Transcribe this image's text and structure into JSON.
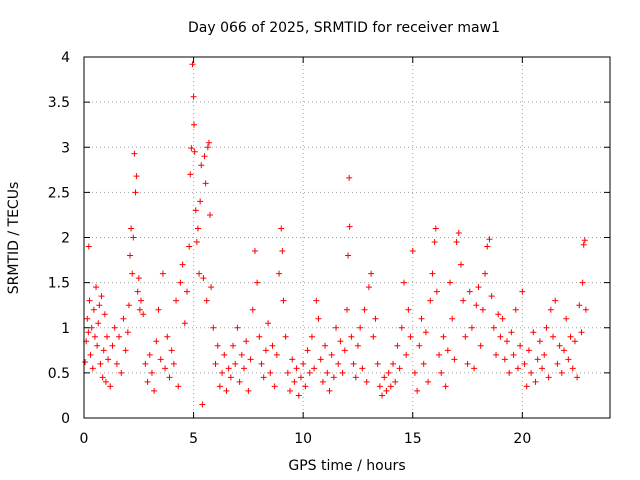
{
  "chart_data": {
    "type": "scatter",
    "title": "Day 066 of 2025, SRMTID for receiver maw1",
    "xlabel": "GPS time / hours",
    "ylabel": "SRMTID / TECUs",
    "xlim": [
      0,
      24
    ],
    "ylim": [
      0,
      4
    ],
    "xticks": [
      0,
      5,
      10,
      15,
      20
    ],
    "yticks": [
      0,
      0.5,
      1,
      1.5,
      2,
      2.5,
      3,
      3.5,
      4
    ],
    "xtick_labels": [
      "0",
      "5",
      "10",
      "15",
      "20"
    ],
    "ytick_labels": [
      "0",
      "0.5",
      "1",
      "1.5",
      "2",
      "2.5",
      "3",
      "3.5",
      "4"
    ],
    "grid": true,
    "marker": "+",
    "color": "#ff0000",
    "series": [
      {
        "name": "SRMTID",
        "points": [
          [
            0.05,
            0.62
          ],
          [
            0.1,
            0.85
          ],
          [
            0.15,
            1.1
          ],
          [
            0.2,
            0.95
          ],
          [
            0.22,
            1.9
          ],
          [
            0.25,
            1.3
          ],
          [
            0.3,
            0.7
          ],
          [
            0.35,
            1.0
          ],
          [
            0.4,
            0.55
          ],
          [
            0.45,
            1.2
          ],
          [
            0.5,
            0.9
          ],
          [
            0.55,
            1.45
          ],
          [
            0.6,
            0.8
          ],
          [
            0.65,
            1.05
          ],
          [
            0.7,
            1.25
          ],
          [
            0.75,
            0.6
          ],
          [
            0.8,
            1.35
          ],
          [
            0.85,
            0.45
          ],
          [
            0.9,
            0.75
          ],
          [
            0.95,
            1.15
          ],
          [
            1.0,
            0.4
          ],
          [
            1.05,
            0.9
          ],
          [
            1.1,
            0.65
          ],
          [
            1.2,
            0.35
          ],
          [
            1.3,
            0.8
          ],
          [
            1.4,
            1.0
          ],
          [
            1.5,
            0.6
          ],
          [
            1.6,
            0.9
          ],
          [
            1.7,
            0.5
          ],
          [
            1.8,
            1.1
          ],
          [
            1.9,
            0.75
          ],
          [
            2.0,
            0.95
          ],
          [
            2.05,
            1.25
          ],
          [
            2.1,
            1.8
          ],
          [
            2.15,
            2.1
          ],
          [
            2.2,
            1.6
          ],
          [
            2.25,
            2.0
          ],
          [
            2.3,
            2.93
          ],
          [
            2.35,
            2.5
          ],
          [
            2.4,
            2.68
          ],
          [
            2.45,
            1.4
          ],
          [
            2.5,
            1.55
          ],
          [
            2.55,
            1.2
          ],
          [
            2.6,
            1.3
          ],
          [
            2.7,
            1.15
          ],
          [
            2.8,
            0.6
          ],
          [
            2.9,
            0.4
          ],
          [
            3.0,
            0.7
          ],
          [
            3.1,
            0.5
          ],
          [
            3.2,
            0.3
          ],
          [
            3.3,
            0.85
          ],
          [
            3.4,
            1.2
          ],
          [
            3.5,
            0.65
          ],
          [
            3.6,
            1.6
          ],
          [
            3.7,
            0.55
          ],
          [
            3.8,
            0.9
          ],
          [
            3.9,
            0.45
          ],
          [
            4.0,
            0.75
          ],
          [
            4.1,
            0.6
          ],
          [
            4.2,
            1.3
          ],
          [
            4.3,
            0.35
          ],
          [
            4.4,
            1.5
          ],
          [
            4.5,
            1.7
          ],
          [
            4.6,
            1.05
          ],
          [
            4.7,
            1.4
          ],
          [
            4.8,
            1.9
          ],
          [
            4.85,
            2.7
          ],
          [
            4.9,
            2.99
          ],
          [
            4.95,
            3.92
          ],
          [
            5.0,
            3.56
          ],
          [
            5.02,
            3.25
          ],
          [
            5.05,
            2.95
          ],
          [
            5.1,
            2.3
          ],
          [
            5.15,
            1.95
          ],
          [
            5.2,
            2.1
          ],
          [
            5.25,
            1.6
          ],
          [
            5.3,
            2.4
          ],
          [
            5.35,
            2.8
          ],
          [
            5.4,
            0.15
          ],
          [
            5.45,
            1.55
          ],
          [
            5.5,
            2.9
          ],
          [
            5.55,
            2.6
          ],
          [
            5.6,
            1.3
          ],
          [
            5.65,
            3.0
          ],
          [
            5.7,
            3.05
          ],
          [
            5.75,
            2.25
          ],
          [
            5.8,
            1.45
          ],
          [
            5.9,
            1.0
          ],
          [
            6.0,
            0.6
          ],
          [
            6.1,
            0.8
          ],
          [
            6.2,
            0.35
          ],
          [
            6.3,
            0.5
          ],
          [
            6.4,
            0.7
          ],
          [
            6.5,
            0.3
          ],
          [
            6.6,
            0.55
          ],
          [
            6.7,
            0.45
          ],
          [
            6.8,
            0.8
          ],
          [
            6.9,
            0.6
          ],
          [
            7.0,
            1.0
          ],
          [
            7.1,
            0.4
          ],
          [
            7.2,
            0.7
          ],
          [
            7.3,
            0.55
          ],
          [
            7.4,
            0.85
          ],
          [
            7.5,
            0.3
          ],
          [
            7.6,
            0.65
          ],
          [
            7.7,
            1.2
          ],
          [
            7.8,
            1.85
          ],
          [
            7.9,
            1.5
          ],
          [
            8.0,
            0.9
          ],
          [
            8.1,
            0.6
          ],
          [
            8.2,
            0.45
          ],
          [
            8.3,
            0.75
          ],
          [
            8.4,
            1.05
          ],
          [
            8.5,
            0.5
          ],
          [
            8.6,
            0.8
          ],
          [
            8.7,
            0.35
          ],
          [
            8.8,
            0.7
          ],
          [
            8.9,
            1.6
          ],
          [
            9.0,
            2.1
          ],
          [
            9.05,
            1.85
          ],
          [
            9.1,
            1.3
          ],
          [
            9.2,
            0.9
          ],
          [
            9.3,
            0.5
          ],
          [
            9.4,
            0.3
          ],
          [
            9.5,
            0.65
          ],
          [
            9.6,
            0.4
          ],
          [
            9.7,
            0.55
          ],
          [
            9.8,
            0.25
          ],
          [
            9.9,
            0.45
          ],
          [
            10.0,
            0.6
          ],
          [
            10.1,
            0.35
          ],
          [
            10.2,
            0.75
          ],
          [
            10.3,
            0.5
          ],
          [
            10.4,
            0.9
          ],
          [
            10.5,
            0.55
          ],
          [
            10.6,
            1.3
          ],
          [
            10.7,
            1.1
          ],
          [
            10.8,
            0.65
          ],
          [
            10.9,
            0.4
          ],
          [
            11.0,
            0.8
          ],
          [
            11.1,
            0.5
          ],
          [
            11.2,
            0.3
          ],
          [
            11.3,
            0.7
          ],
          [
            11.4,
            0.45
          ],
          [
            11.5,
            1.0
          ],
          [
            11.6,
            0.6
          ],
          [
            11.7,
            0.85
          ],
          [
            11.8,
            0.5
          ],
          [
            11.9,
            0.75
          ],
          [
            12.0,
            1.2
          ],
          [
            12.05,
            1.8
          ],
          [
            12.1,
            2.66
          ],
          [
            12.12,
            2.12
          ],
          [
            12.2,
            0.9
          ],
          [
            12.3,
            0.6
          ],
          [
            12.4,
            0.45
          ],
          [
            12.5,
            0.8
          ],
          [
            12.6,
            1.0
          ],
          [
            12.7,
            0.55
          ],
          [
            12.8,
            1.2
          ],
          [
            12.9,
            0.4
          ],
          [
            13.0,
            1.45
          ],
          [
            13.1,
            1.6
          ],
          [
            13.2,
            0.9
          ],
          [
            13.3,
            1.1
          ],
          [
            13.4,
            0.6
          ],
          [
            13.5,
            0.35
          ],
          [
            13.6,
            0.25
          ],
          [
            13.7,
            0.45
          ],
          [
            13.8,
            0.3
          ],
          [
            13.9,
            0.5
          ],
          [
            14.0,
            0.35
          ],
          [
            14.1,
            0.6
          ],
          [
            14.2,
            0.4
          ],
          [
            14.3,
            0.8
          ],
          [
            14.4,
            0.55
          ],
          [
            14.5,
            1.0
          ],
          [
            14.6,
            1.5
          ],
          [
            14.7,
            0.7
          ],
          [
            14.8,
            1.2
          ],
          [
            14.9,
            0.9
          ],
          [
            15.0,
            1.85
          ],
          [
            15.1,
            0.5
          ],
          [
            15.2,
            0.3
          ],
          [
            15.3,
            0.8
          ],
          [
            15.4,
            1.1
          ],
          [
            15.5,
            0.6
          ],
          [
            15.6,
            0.95
          ],
          [
            15.7,
            0.4
          ],
          [
            15.8,
            1.3
          ],
          [
            15.9,
            1.6
          ],
          [
            16.0,
            1.95
          ],
          [
            16.05,
            2.1
          ],
          [
            16.1,
            1.4
          ],
          [
            16.2,
            0.7
          ],
          [
            16.3,
            0.5
          ],
          [
            16.4,
            0.9
          ],
          [
            16.5,
            0.35
          ],
          [
            16.6,
            0.75
          ],
          [
            16.7,
            1.5
          ],
          [
            16.8,
            1.1
          ],
          [
            16.9,
            0.65
          ],
          [
            17.0,
            1.95
          ],
          [
            17.1,
            2.05
          ],
          [
            17.2,
            1.7
          ],
          [
            17.3,
            1.3
          ],
          [
            17.4,
            0.9
          ],
          [
            17.5,
            0.6
          ],
          [
            17.6,
            1.4
          ],
          [
            17.7,
            1.0
          ],
          [
            17.8,
            0.55
          ],
          [
            17.9,
            1.25
          ],
          [
            18.0,
            1.45
          ],
          [
            18.1,
            0.8
          ],
          [
            18.2,
            1.2
          ],
          [
            18.3,
            1.6
          ],
          [
            18.4,
            1.9
          ],
          [
            18.5,
            1.98
          ],
          [
            18.6,
            1.35
          ],
          [
            18.7,
            1.0
          ],
          [
            18.8,
            0.7
          ],
          [
            18.9,
            1.15
          ],
          [
            19.0,
            0.9
          ],
          [
            19.1,
            1.1
          ],
          [
            19.2,
            0.65
          ],
          [
            19.3,
            0.85
          ],
          [
            19.4,
            0.5
          ],
          [
            19.5,
            0.95
          ],
          [
            19.6,
            0.7
          ],
          [
            19.7,
            1.2
          ],
          [
            19.8,
            0.55
          ],
          [
            19.9,
            0.8
          ],
          [
            20.0,
            1.4
          ],
          [
            20.1,
            0.6
          ],
          [
            20.2,
            0.35
          ],
          [
            20.3,
            0.75
          ],
          [
            20.4,
            0.5
          ],
          [
            20.5,
            0.95
          ],
          [
            20.6,
            0.4
          ],
          [
            20.7,
            0.65
          ],
          [
            20.8,
            0.85
          ],
          [
            20.9,
            0.55
          ],
          [
            21.0,
            0.7
          ],
          [
            21.1,
            1.0
          ],
          [
            21.2,
            0.45
          ],
          [
            21.3,
            1.2
          ],
          [
            21.4,
            0.9
          ],
          [
            21.5,
            1.3
          ],
          [
            21.6,
            0.6
          ],
          [
            21.7,
            0.8
          ],
          [
            21.8,
            0.5
          ],
          [
            21.9,
            0.75
          ],
          [
            22.0,
            1.1
          ],
          [
            22.1,
            0.65
          ],
          [
            22.2,
            0.9
          ],
          [
            22.3,
            0.55
          ],
          [
            22.4,
            0.85
          ],
          [
            22.5,
            0.45
          ],
          [
            22.6,
            1.25
          ],
          [
            22.7,
            0.95
          ],
          [
            22.75,
            1.5
          ],
          [
            22.8,
            1.92
          ],
          [
            22.85,
            1.97
          ],
          [
            22.9,
            1.2
          ]
        ]
      }
    ]
  }
}
